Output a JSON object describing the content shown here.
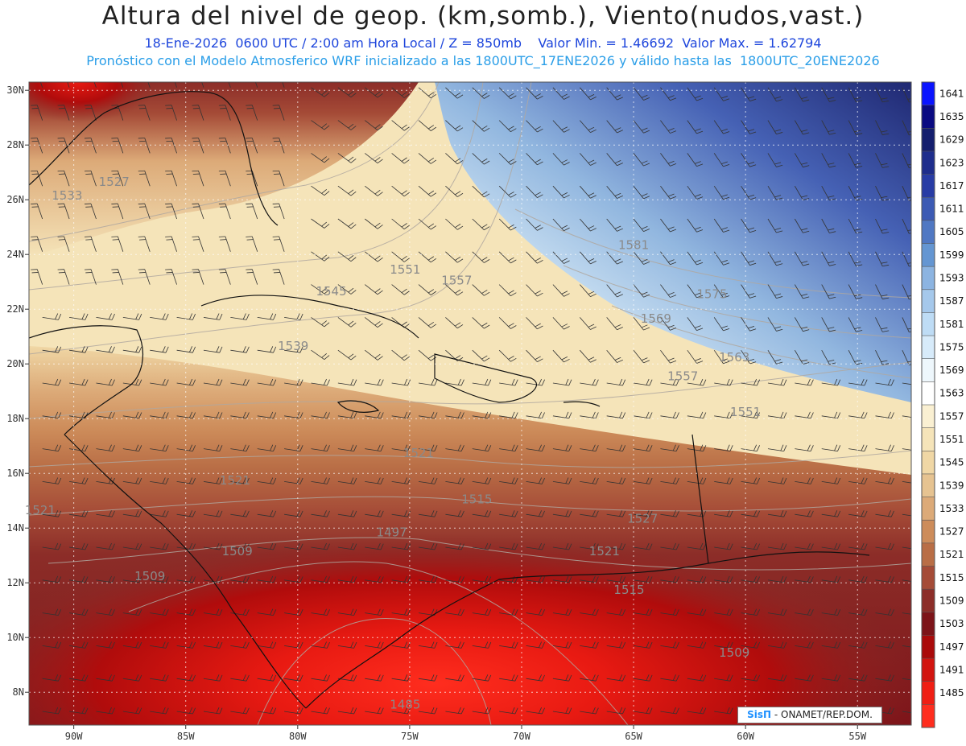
{
  "header": {
    "title": "Altura del nivel de geop. (km,somb.), Viento(nudos,vast.)",
    "line1": "18-Ene-2026  0600 UTC / 2:00 am Hora Local / Z = 850mb    Valor Min. = 1.46692  Valor Max. = 1.62794",
    "line2": "Pronóstico con el Modelo Atmosferico WRF inicializado a las 1800UTC_17ENE2026 y válido hasta las  1800UTC_20ENE2026"
  },
  "map": {
    "lon_range": [
      -92,
      -52.6
    ],
    "lat_range": [
      6.8,
      30.3
    ],
    "lon_ticks": [
      "90W",
      "85W",
      "80W",
      "75W",
      "70W",
      "65W",
      "60W",
      "55W"
    ],
    "lat_ticks": [
      "30N",
      "28N",
      "26N",
      "24N",
      "22N",
      "20N",
      "18N",
      "16N",
      "14N",
      "12N",
      "10N",
      "8N"
    ],
    "contour_labels": [
      {
        "text": "1527",
        "lon": -88.2,
        "lat": 26.5
      },
      {
        "text": "1533",
        "lon": -90.3,
        "lat": 26.0
      },
      {
        "text": "1557",
        "lon": -72.9,
        "lat": 22.9
      },
      {
        "text": "1551",
        "lon": -75.2,
        "lat": 23.3
      },
      {
        "text": "1545",
        "lon": -78.5,
        "lat": 22.5
      },
      {
        "text": "1539",
        "lon": -80.2,
        "lat": 20.5
      },
      {
        "text": "1581",
        "lon": -65.0,
        "lat": 24.2
      },
      {
        "text": "1575",
        "lon": -61.5,
        "lat": 22.4
      },
      {
        "text": "1569",
        "lon": -64.0,
        "lat": 21.5
      },
      {
        "text": "1563",
        "lon": -60.5,
        "lat": 20.1
      },
      {
        "text": "1557",
        "lon": -62.8,
        "lat": 19.4
      },
      {
        "text": "1551",
        "lon": -60.0,
        "lat": 18.1
      },
      {
        "text": "1521",
        "lon": -74.6,
        "lat": 16.6
      },
      {
        "text": "1521",
        "lon": -82.8,
        "lat": 15.6
      },
      {
        "text": "1521",
        "lon": -91.5,
        "lat": 14.5
      },
      {
        "text": "1527",
        "lon": -64.6,
        "lat": 14.2
      },
      {
        "text": "1521",
        "lon": -66.3,
        "lat": 13.0
      },
      {
        "text": "1515",
        "lon": -72.0,
        "lat": 14.9
      },
      {
        "text": "1515",
        "lon": -65.2,
        "lat": 11.6
      },
      {
        "text": "1509",
        "lon": -82.7,
        "lat": 13.0
      },
      {
        "text": "1509",
        "lon": -86.6,
        "lat": 12.1
      },
      {
        "text": "1509",
        "lon": -60.5,
        "lat": 9.3
      },
      {
        "text": "1497",
        "lon": -75.8,
        "lat": 13.7
      },
      {
        "text": "1485",
        "lon": -75.2,
        "lat": 7.4
      }
    ]
  },
  "colorbar": {
    "labels": [
      "1641",
      "1635",
      "1629",
      "1623",
      "1617",
      "1611",
      "1605",
      "1599",
      "1593",
      "1587",
      "1581",
      "1575",
      "1569",
      "1563",
      "1557",
      "1551",
      "1545",
      "1539",
      "1533",
      "1527",
      "1521",
      "1515",
      "1509",
      "1503",
      "1497",
      "1491",
      "1485"
    ],
    "colors": [
      "#0a14ff",
      "#0a0a82",
      "#141e6e",
      "#1e2d8c",
      "#283ca5",
      "#3c5ab4",
      "#5078c3",
      "#6496d2",
      "#8cb4e1",
      "#a5c8eb",
      "#bedcf5",
      "#d7ebfa",
      "#eef7fc",
      "#ffffff",
      "#faf0d2",
      "#f5e4b9",
      "#f0d7a5",
      "#e6c391",
      "#dcaa78",
      "#cd8c5a",
      "#b96e46",
      "#a54b37",
      "#8c2d28",
      "#7d1419",
      "#aa0a0a",
      "#d2140f",
      "#f01e14",
      "#ff2d1e"
    ]
  },
  "credit": {
    "logo": "SisΠ",
    "text": " - ONAMET/REP.DOM."
  }
}
